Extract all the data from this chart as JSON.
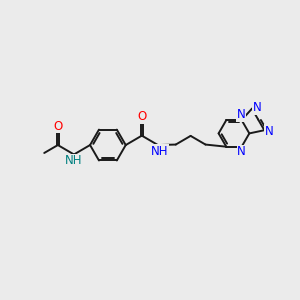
{
  "bg_color": "#ebebeb",
  "bond_color": "#1a1a1a",
  "nitrogen_color": "#0000ff",
  "oxygen_color": "#ff0000",
  "nh_color": "#008080",
  "line_width": 1.4,
  "font_size": 8.5,
  "fig_size": [
    3.0,
    3.0
  ],
  "dpi": 100,
  "xlim": [
    0,
    12
  ],
  "ylim": [
    0,
    10
  ]
}
